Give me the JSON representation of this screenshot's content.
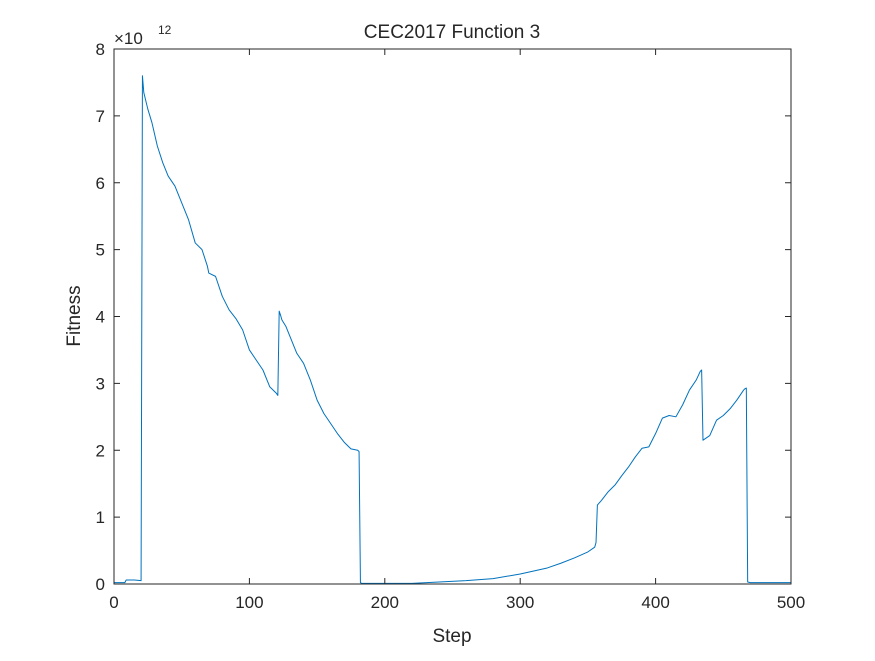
{
  "chart_data": {
    "type": "line",
    "title": "CEC2017 Function 3",
    "xlabel": "Step",
    "ylabel": "Fitness",
    "y_exponent_prefix": "×10",
    "y_exponent": "12",
    "xlim": [
      0,
      500
    ],
    "ylim": [
      0,
      8
    ],
    "y_scale_factor": 1000000000000.0,
    "xticks": [
      0,
      100,
      200,
      300,
      400,
      500
    ],
    "yticks": [
      0,
      1,
      2,
      3,
      4,
      5,
      6,
      7,
      8
    ],
    "grid": false,
    "box": true,
    "line_color": "#0072BD",
    "series": [
      {
        "x": [
          0,
          8,
          9,
          15,
          20,
          21,
          22,
          25,
          28,
          32,
          36,
          40,
          45,
          50,
          55,
          60,
          65,
          69,
          70,
          75,
          80,
          85,
          90,
          95,
          100,
          105,
          110,
          115,
          120,
          121,
          122,
          123,
          124,
          127,
          130,
          135,
          140,
          145,
          150,
          155,
          160,
          165,
          170,
          175,
          180,
          181,
          182,
          183,
          190,
          200,
          220,
          240,
          260,
          280,
          300,
          320,
          330,
          340,
          350,
          355,
          356,
          357,
          360,
          365,
          370,
          375,
          380,
          385,
          390,
          395,
          400,
          405,
          410,
          415,
          420,
          425,
          430,
          433,
          434,
          435,
          440,
          445,
          450,
          455,
          460,
          465,
          466,
          467,
          468,
          470,
          480,
          500
        ],
        "y": [
          0.02,
          0.02,
          0.06,
          0.06,
          0.05,
          7.6,
          7.35,
          7.1,
          6.9,
          6.55,
          6.3,
          6.1,
          5.95,
          5.7,
          5.45,
          5.1,
          5.0,
          4.75,
          4.65,
          4.6,
          4.3,
          4.1,
          3.97,
          3.8,
          3.5,
          3.35,
          3.2,
          2.95,
          2.85,
          2.82,
          4.08,
          4.02,
          3.95,
          3.85,
          3.7,
          3.45,
          3.3,
          3.05,
          2.75,
          2.55,
          2.4,
          2.25,
          2.12,
          2.02,
          2.0,
          1.98,
          0.02,
          0.01,
          0.01,
          0.01,
          0.01,
          0.03,
          0.05,
          0.08,
          0.15,
          0.24,
          0.31,
          0.39,
          0.48,
          0.55,
          0.62,
          1.18,
          1.25,
          1.38,
          1.48,
          1.62,
          1.75,
          1.9,
          2.03,
          2.05,
          2.25,
          2.48,
          2.52,
          2.5,
          2.68,
          2.9,
          3.05,
          3.18,
          3.2,
          2.15,
          2.22,
          2.45,
          2.52,
          2.62,
          2.75,
          2.9,
          2.92,
          2.93,
          0.03,
          0.02,
          0.02,
          0.02
        ]
      }
    ]
  }
}
